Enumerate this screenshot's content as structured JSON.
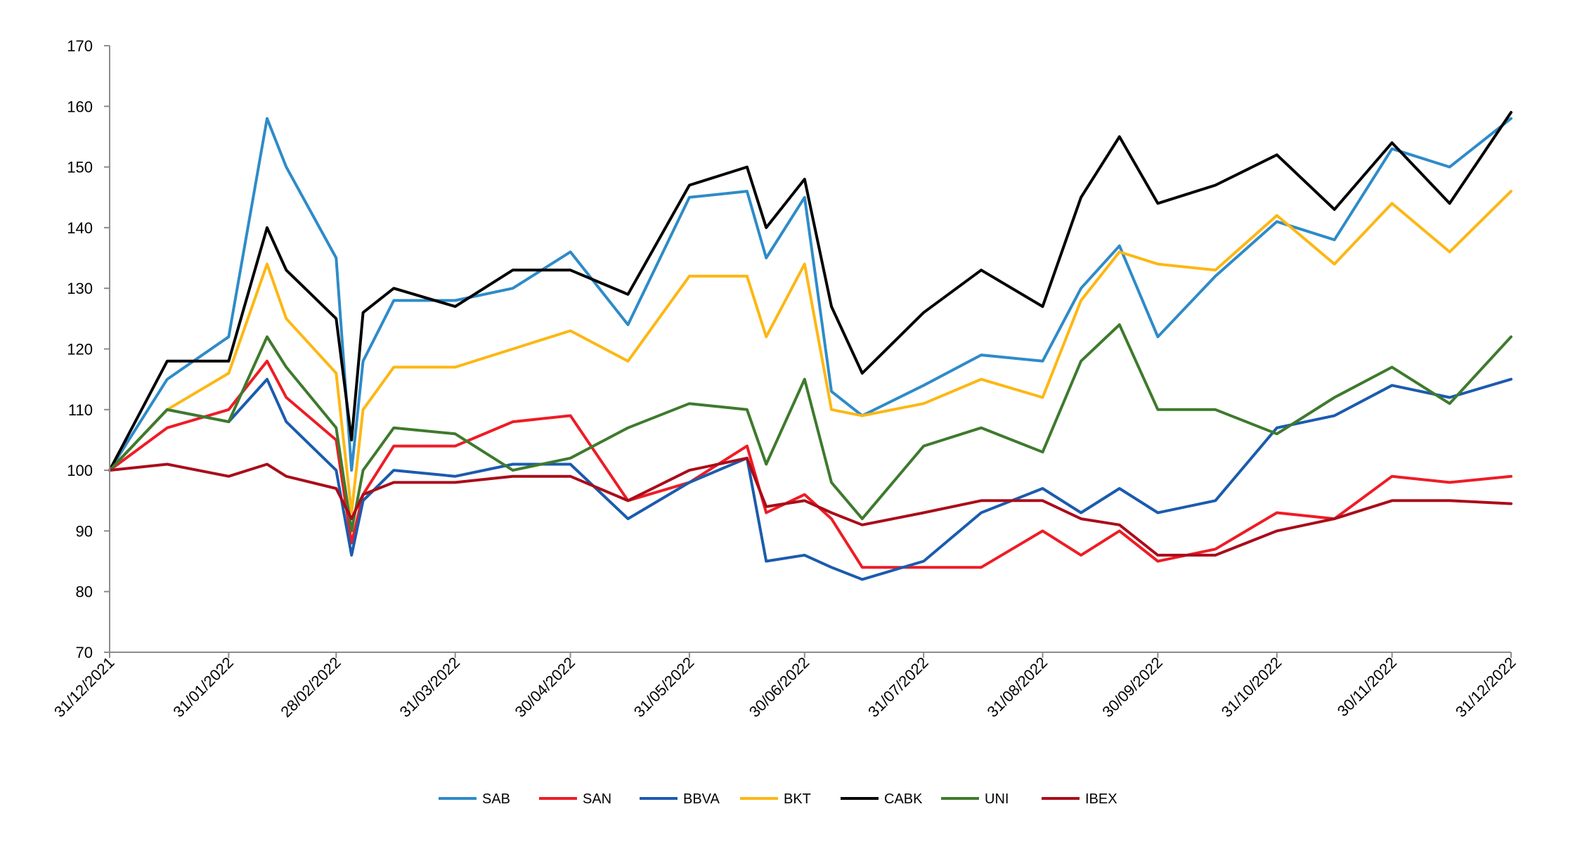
{
  "chart_data": {
    "type": "line",
    "title": "",
    "xlabel": "",
    "ylabel": "",
    "ylim": [
      70,
      170
    ],
    "yticks": [
      70,
      80,
      90,
      100,
      110,
      120,
      130,
      140,
      150,
      160,
      170
    ],
    "x_tick_labels": [
      "31/12/2021",
      "31/01/2022",
      "28/02/2022",
      "31/03/2022",
      "30/04/2022",
      "31/05/2022",
      "30/06/2022",
      "31/07/2022",
      "31/08/2022",
      "30/09/2022",
      "31/10/2022",
      "30/11/2022",
      "31/12/2022"
    ],
    "grid": false,
    "legend_position": "bottom",
    "x": [
      "31/12/2021",
      "15/01/2022",
      "31/01/2022",
      "10/02/2022",
      "15/02/2022",
      "28/02/2022",
      "04/03/2022",
      "07/03/2022",
      "15/03/2022",
      "31/03/2022",
      "15/04/2022",
      "30/04/2022",
      "15/05/2022",
      "31/05/2022",
      "15/06/2022",
      "20/06/2022",
      "30/06/2022",
      "07/07/2022",
      "15/07/2022",
      "31/07/2022",
      "15/08/2022",
      "31/08/2022",
      "10/09/2022",
      "20/09/2022",
      "30/09/2022",
      "15/10/2022",
      "31/10/2022",
      "15/11/2022",
      "30/11/2022",
      "15/12/2022",
      "31/12/2022"
    ],
    "series": [
      {
        "name": "SAB",
        "color": "#2E8BC8",
        "values": [
          100,
          115,
          122,
          158,
          150,
          135,
          100,
          118,
          128,
          128,
          130,
          136,
          124,
          145,
          146,
          135,
          145,
          113,
          109,
          114,
          119,
          118,
          130,
          137,
          122,
          132,
          141,
          138,
          153,
          150,
          158
        ]
      },
      {
        "name": "SAN",
        "color": "#EE1C25",
        "values": [
          100,
          107,
          110,
          118,
          112,
          105,
          88,
          96,
          104,
          104,
          108,
          109,
          95,
          98,
          104,
          93,
          96,
          92,
          84,
          84,
          84,
          90,
          86,
          90,
          85,
          87,
          93,
          92,
          99,
          98,
          99
        ]
      },
      {
        "name": "BBVA",
        "color": "#1B5BAE",
        "values": [
          100,
          110,
          108,
          115,
          108,
          100,
          86,
          95,
          100,
          99,
          101,
          101,
          92,
          98,
          102,
          85,
          86,
          84,
          82,
          85,
          93,
          97,
          93,
          97,
          93,
          95,
          107,
          109,
          114,
          112,
          115
        ]
      },
      {
        "name": "BKT",
        "color": "#FDB714",
        "values": [
          100,
          110,
          116,
          134,
          125,
          116,
          93,
          110,
          117,
          117,
          120,
          123,
          118,
          132,
          132,
          122,
          134,
          110,
          109,
          111,
          115,
          112,
          128,
          136,
          134,
          133,
          142,
          134,
          144,
          136,
          146
        ]
      },
      {
        "name": "CABK",
        "color": "#000000",
        "values": [
          100,
          118,
          118,
          140,
          133,
          125,
          105,
          126,
          130,
          127,
          133,
          133,
          129,
          147,
          150,
          140,
          148,
          127,
          116,
          126,
          133,
          127,
          145,
          155,
          144,
          147,
          152,
          143,
          154,
          144,
          159
        ]
      },
      {
        "name": "UNI",
        "color": "#3E7A2D",
        "values": [
          100,
          110,
          108,
          122,
          117,
          107,
          90,
          100,
          107,
          106,
          100,
          102,
          107,
          111,
          110,
          101,
          115,
          98,
          92,
          104,
          107,
          103,
          118,
          124,
          110,
          110,
          106,
          112,
          117,
          111,
          122
        ]
      },
      {
        "name": "IBEX",
        "color": "#A90D1A",
        "values": [
          100,
          101,
          99,
          101,
          99,
          97,
          92,
          96,
          98,
          98,
          99,
          99,
          95,
          100,
          102,
          94,
          95,
          93,
          91,
          93,
          95,
          95,
          92,
          91,
          86,
          86,
          90,
          92,
          95,
          95,
          94.5
        ]
      }
    ]
  }
}
